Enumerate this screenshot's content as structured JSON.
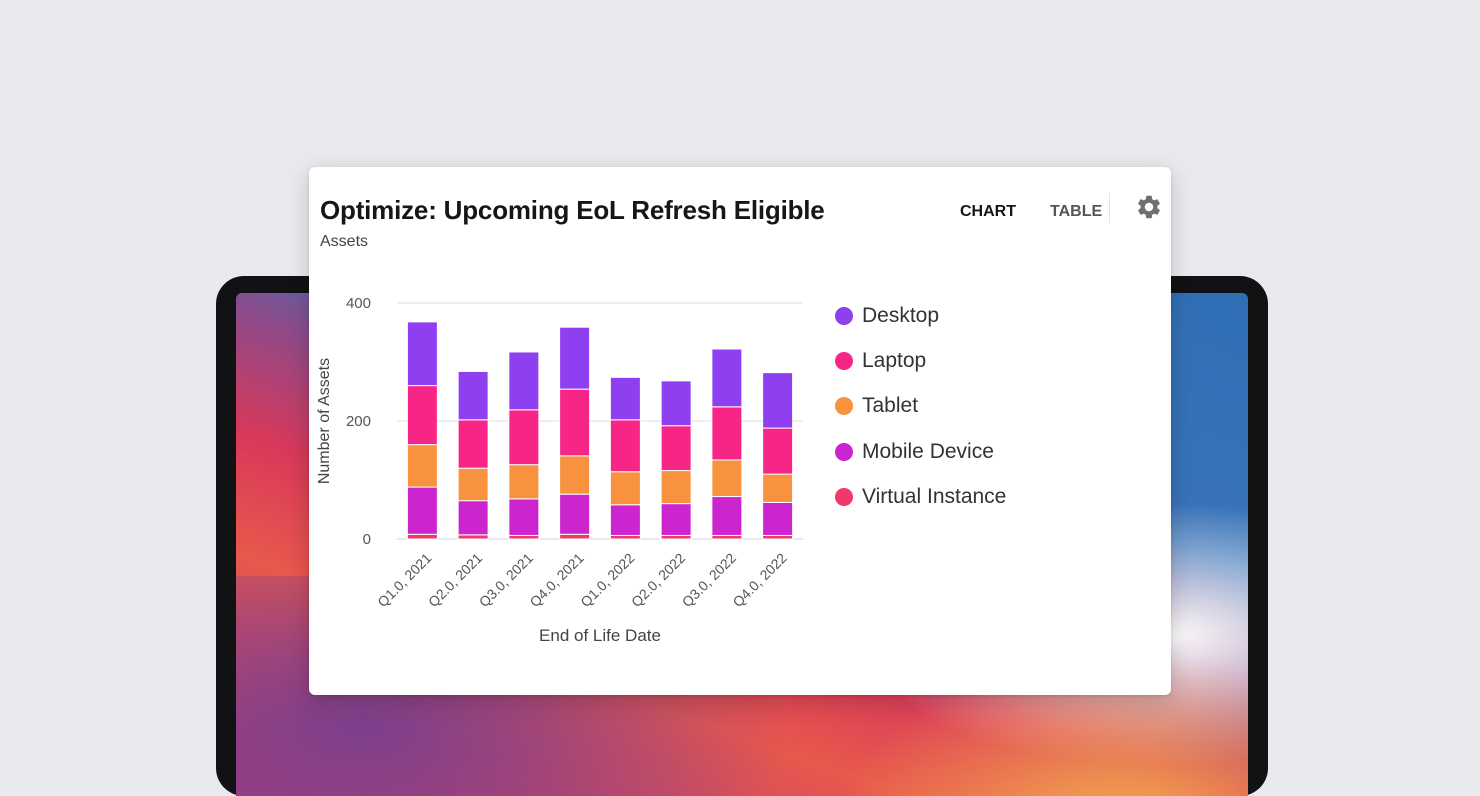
{
  "widget": {
    "title": "Optimize: Upcoming EoL Refresh Eligible",
    "subtitle": "Assets",
    "tabs": [
      {
        "label": "CHART",
        "active": true
      },
      {
        "label": "TABLE",
        "active": false
      }
    ],
    "settings_icon": "gear-icon"
  },
  "colors": {
    "Desktop": "#8e3ff0",
    "Laptop": "#f72585",
    "Tablet": "#f8923f",
    "Mobile Device": "#cc25cf",
    "Virtual Instance": "#f0386b"
  },
  "chart_data": {
    "type": "bar",
    "stacked": true,
    "title": "",
    "xlabel": "End of Life Date",
    "ylabel": "Number of Assets",
    "ylim": [
      0,
      400
    ],
    "yticks": [
      0,
      200,
      400
    ],
    "grid": true,
    "legend_position": "right",
    "categories": [
      "Q1.0, 2021",
      "Q2.0, 2021",
      "Q3.0, 2021",
      "Q4.0, 2021",
      "Q1.0, 2022",
      "Q2.0, 2022",
      "Q3.0, 2022",
      "Q4.0, 2022"
    ],
    "series": [
      {
        "name": "Virtual Instance",
        "values": [
          8,
          7,
          6,
          8,
          6,
          6,
          6,
          6
        ]
      },
      {
        "name": "Mobile Device",
        "values": [
          80,
          58,
          62,
          68,
          52,
          54,
          66,
          56
        ]
      },
      {
        "name": "Tablet",
        "values": [
          72,
          55,
          58,
          65,
          56,
          56,
          62,
          48
        ]
      },
      {
        "name": "Laptop",
        "values": [
          100,
          82,
          93,
          113,
          88,
          76,
          90,
          78
        ]
      },
      {
        "name": "Desktop",
        "values": [
          108,
          82,
          98,
          105,
          72,
          76,
          98,
          94
        ]
      }
    ],
    "legend_order": [
      "Desktop",
      "Laptop",
      "Tablet",
      "Mobile Device",
      "Virtual Instance"
    ]
  }
}
